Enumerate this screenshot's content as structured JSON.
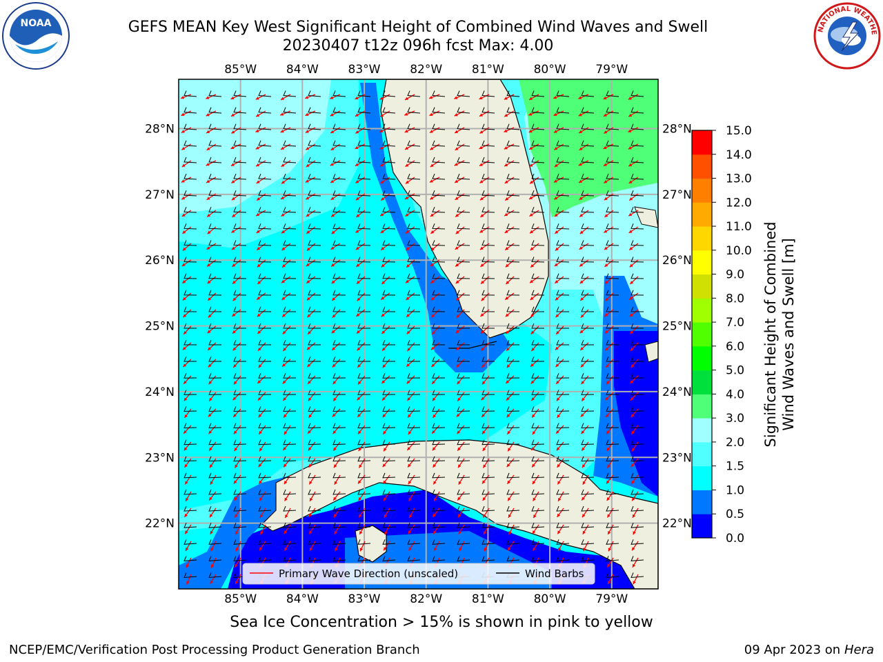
{
  "header": {
    "title_line1": "GEFS MEAN Key West Significant Height of Combined Wind Waves and Swell",
    "title_line2": "20230407 t12z 096h fcst   Max: 4.00"
  },
  "logos": {
    "left": {
      "name": "noaa-logo-icon",
      "text": "NOAA"
    },
    "right": {
      "name": "nws-logo-icon",
      "text": "NATIONAL WEATHER SERVICE"
    }
  },
  "map": {
    "lon_labels": [
      "85°W",
      "84°W",
      "83°W",
      "82°W",
      "81°W",
      "80°W",
      "79°W"
    ],
    "lon_values": [
      -85,
      -84,
      -83,
      -82,
      -81,
      -80,
      -79
    ],
    "lat_labels": [
      "28°N",
      "27°N",
      "26°N",
      "25°N",
      "24°N",
      "23°N",
      "22°N"
    ],
    "lat_values": [
      28,
      27,
      26,
      25,
      24,
      23,
      22
    ],
    "extent": {
      "lon_min": -86.0,
      "lon_max": -78.25,
      "lat_min": 21.0,
      "lat_max": 28.75
    },
    "legend": {
      "location": "lower-center",
      "entries": [
        {
          "label": "Primary Wave Direction (unscaled)",
          "color": "#ff0000"
        },
        {
          "label": "Wind Barbs",
          "color": "#000000"
        }
      ]
    },
    "colors": {
      "land": "#efefdf",
      "grid": "#b0b0b0",
      "coast": "#000000",
      "arrow": "#ff0000"
    }
  },
  "colorbar": {
    "label": "Significant Height of Combined Wind Waves and Swell [m]",
    "label_line1": "Significant Height of Combined",
    "label_line2": "Wind Waves and Swell [m]",
    "ticks": [
      "0.0",
      "0.5",
      "1.0",
      "1.5",
      "2.0",
      "3.0",
      "4.0",
      "5.0",
      "6.0",
      "7.0",
      "8.0",
      "9.0",
      "10.0",
      "11.0",
      "12.0",
      "13.0",
      "14.0",
      "15.0"
    ],
    "colors": [
      "#0000ff",
      "#0078ff",
      "#00ffff",
      "#50ffff",
      "#a0ffff",
      "#50ff78",
      "#00e03c",
      "#00ff00",
      "#50ff00",
      "#a0ff00",
      "#d0e000",
      "#ffff00",
      "#ffd700",
      "#ffaa00",
      "#ff8000",
      "#ff5000",
      "#ff0000"
    ]
  },
  "caption": "Sea Ice Concentration > 15% is shown in pink to yellow",
  "footer": {
    "left": "NCEP/EMC/Verification Post Processing Product Generation Branch",
    "right_date": "09 Apr 2023 on ",
    "right_host": "Hera"
  }
}
